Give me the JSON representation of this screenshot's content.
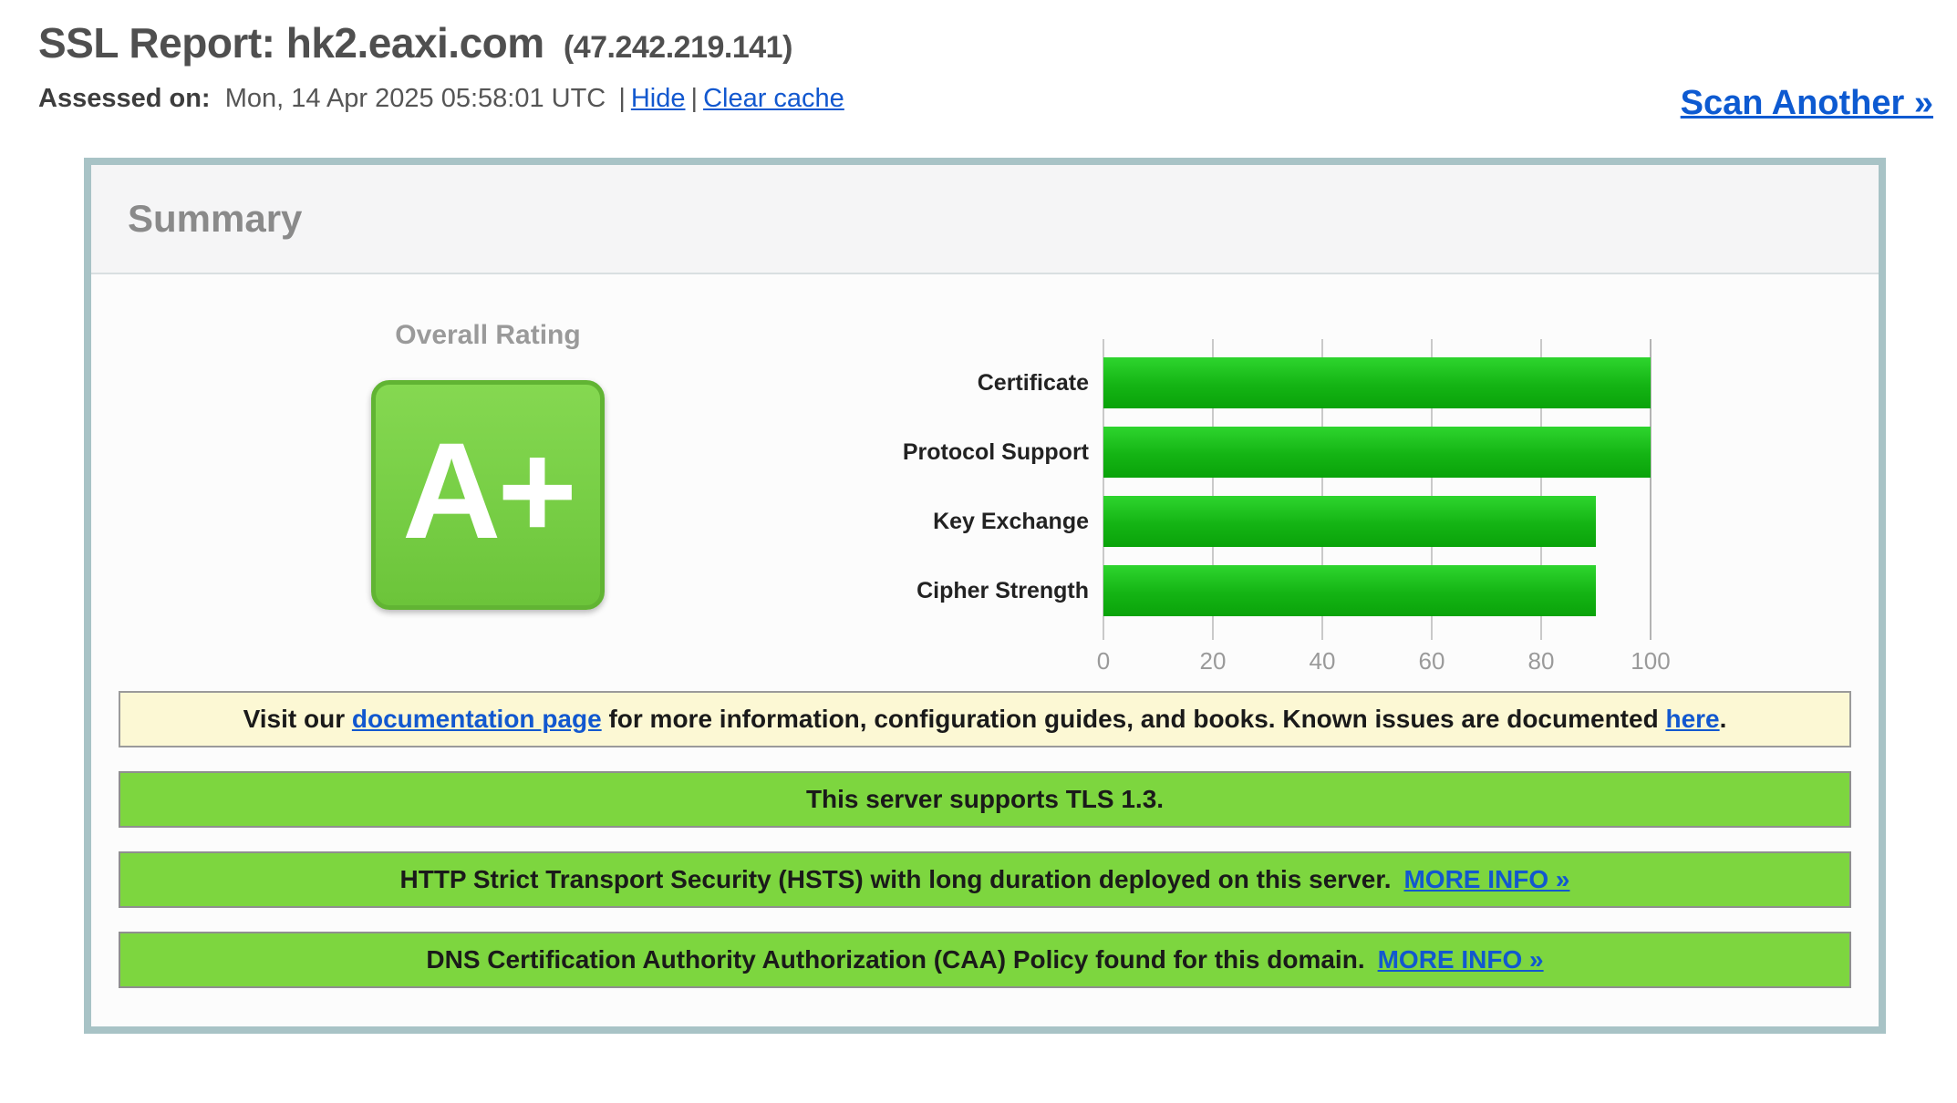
{
  "page": {
    "title": "SSL Report: hk2.eaxi.com",
    "title_ip": "(47.242.219.141)",
    "assessed_label": "Assessed on:",
    "assessed_value": "Mon, 14 Apr 2025 05:58:01 UTC",
    "separator": "|",
    "hide_link": "Hide",
    "clear_cache_link": "Clear cache",
    "scan_another_link": "Scan Another »"
  },
  "summary": {
    "heading": "Summary",
    "overall_rating_label": "Overall Rating",
    "grade": "A+"
  },
  "chart_data": {
    "type": "bar",
    "orientation": "horizontal",
    "title": "",
    "categories": [
      "Certificate",
      "Protocol Support",
      "Key Exchange",
      "Cipher Strength"
    ],
    "values": [
      100,
      100,
      90,
      90
    ],
    "xlim": [
      0,
      100
    ],
    "xticks": [
      0,
      20,
      40,
      60,
      80,
      100
    ],
    "grid": true,
    "legend": "none",
    "bar_color_top": "#2ed52e",
    "bar_color_bottom": "#0aa30a"
  },
  "note_banner": {
    "pre": "Visit our ",
    "doc_link": "documentation page",
    "mid": " for more information, configuration guides, and books. Known issues are documented ",
    "here_link": "here",
    "post": "."
  },
  "status_banners": [
    {
      "text": "This server supports TLS 1.3.",
      "link": ""
    },
    {
      "text": "HTTP Strict Transport Security (HSTS) with long duration deployed on this server.",
      "link": "MORE INFO »"
    },
    {
      "text": "DNS Certification Authority Authorization (CAA) Policy found for this domain.",
      "link": "MORE INFO »"
    }
  ],
  "colors": {
    "banner_green": "#7dd63f",
    "note_yellow": "#fcf8d4",
    "panel_border": "#a8c3c6",
    "grade_green": "#77ce45",
    "bar_green": "#14b414",
    "link_blue": "#1258cf",
    "title_gray": "#4f4f4f"
  }
}
